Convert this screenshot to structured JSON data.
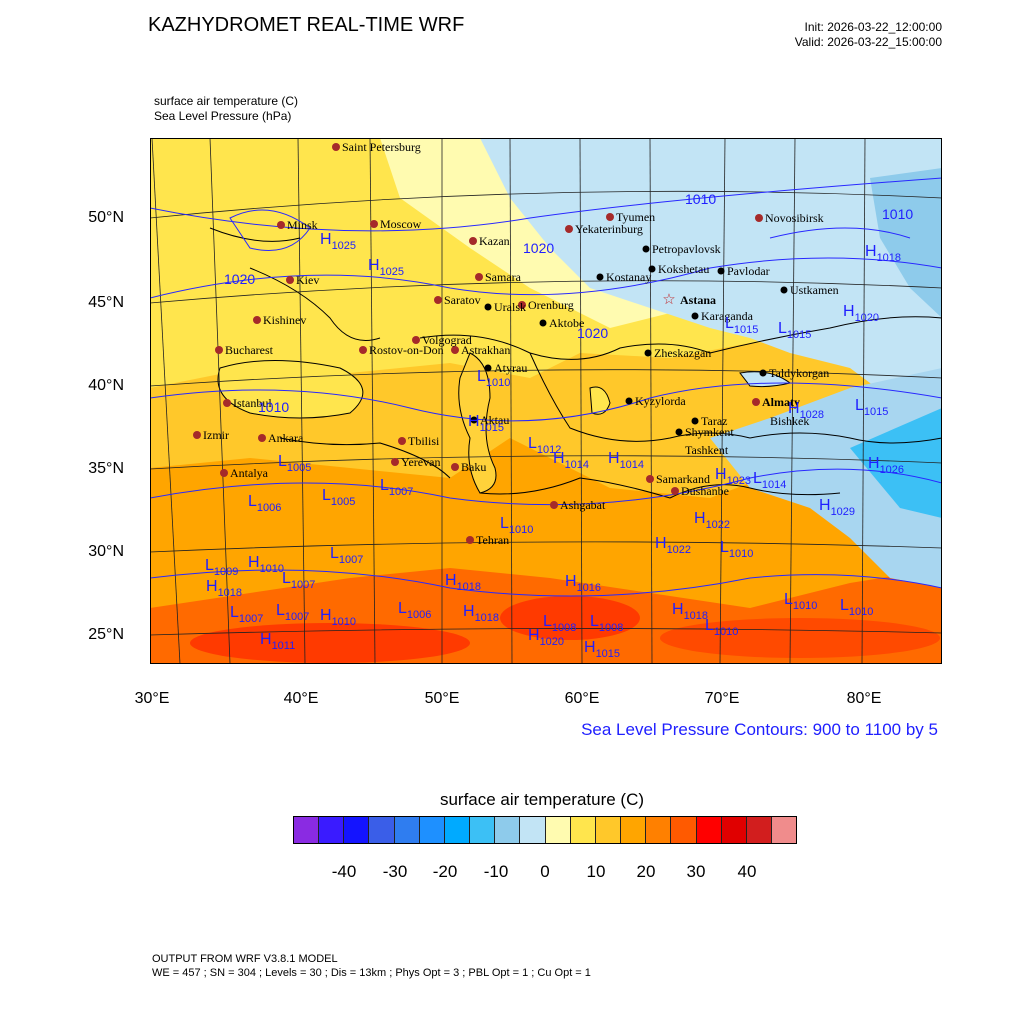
{
  "header": {
    "title": "KAZHYDROMET REAL-TIME WRF",
    "init": "Init: 2026-03-22_12:00:00",
    "valid": "Valid: 2026-03-22_15:00:00"
  },
  "fields": {
    "line1": "surface air temperature   (C)",
    "line2": "Sea Level Pressure   (hPa)"
  },
  "axes": {
    "lat_labels": [
      "50°N",
      "45°N",
      "40°N",
      "35°N",
      "30°N",
      "25°N"
    ],
    "lon_labels": [
      "30°E",
      "40°E",
      "50°E",
      "60°E",
      "70°E",
      "80°E"
    ]
  },
  "slp_note": "Sea Level Pressure Contours: 900 to 1100 by 5",
  "colorbar": {
    "title": "surface air temperature  (C)",
    "labels": [
      "-40",
      "-30",
      "-20",
      "-10",
      "0",
      "10",
      "20",
      "30",
      "40"
    ],
    "colors": [
      "#8a2be2",
      "#3a1bff",
      "#1414ff",
      "#3a5ee8",
      "#2f7df0",
      "#1e90ff",
      "#00aaff",
      "#3cc0f5",
      "#8ecbeb",
      "#c2e4f5",
      "#fffbb0",
      "#ffe54d",
      "#ffc82a",
      "#ffa500",
      "#ff8000",
      "#ff5a00",
      "#ff0000",
      "#e00000",
      "#d21e1e",
      "#f08c8c"
    ]
  },
  "cities": {
    "saint_petersburg": "Saint Petersburg",
    "minsk": "Minsk",
    "moscow": "Moscow",
    "kazan": "Kazan",
    "yekaterinburg": "Yekaterinburg",
    "tyumen": "Tyumen",
    "novosibirsk": "Novosibirsk",
    "petropavlovsk": "Petropavlovsk",
    "kokshetau": "Kokshetau",
    "pavlodar": "Pavlodar",
    "kostanay": "Kostanay",
    "astana": "Astana",
    "ustkamen": "Ustkamen",
    "karaganda": "Karaganda",
    "kiev": "Kiev",
    "samara": "Samara",
    "saratov": "Saratov",
    "orenburg": "Orenburg",
    "uralsk": "Uralsk",
    "aktobe": "Aktobe",
    "kishinev": "Kishinev",
    "volgograd": "Volgograd",
    "bucharest": "Bucharest",
    "rostov": "Rostov-on-Don",
    "astrakhan": "Astrakhan",
    "zheskazgan": "Zheskazgan",
    "atyrau": "Atyrau",
    "taldykorgan": "Taldykorgan",
    "istanbul": "Istanbul",
    "almaty": "Almaty",
    "kyzylorda": "Kyzylorda",
    "aktau": "Aktau",
    "taraz": "Taraz",
    "bishkek": "Bishkek",
    "izmir": "Izmir",
    "ankara": "Ankara",
    "tbilisi": "Tbilisi",
    "shymkent": "Shymkent",
    "tashkent": "Tashkent",
    "yerevan": "Yerevan",
    "baku": "Baku",
    "antalya": "Antalya",
    "samarkand": "Samarkand",
    "dushanbe": "Dushanbe",
    "ashgabat": "Ashgabat",
    "tehran": "Tehran"
  },
  "pressure_labels": [
    {
      "letter": "H",
      "value": "1025"
    },
    {
      "letter": "H",
      "value": "1025"
    },
    {
      "letter": "",
      "value": "1020"
    },
    {
      "letter": "",
      "value": "1020"
    },
    {
      "letter": "",
      "value": "1010"
    },
    {
      "letter": "",
      "value": "1010"
    },
    {
      "letter": "H",
      "value": "1018"
    },
    {
      "letter": "L",
      "value": "1015"
    },
    {
      "letter": "L",
      "value": "1015"
    },
    {
      "letter": "H",
      "value": "1020"
    },
    {
      "letter": "",
      "value": "1020"
    },
    {
      "letter": "L",
      "value": "1010"
    },
    {
      "letter": "",
      "value": "1010"
    },
    {
      "letter": "H",
      "value": "1015"
    },
    {
      "letter": "L",
      "value": "1005"
    },
    {
      "letter": "L",
      "value": "1006"
    },
    {
      "letter": "L",
      "value": "1005"
    },
    {
      "letter": "L",
      "value": "1007"
    },
    {
      "letter": "H",
      "value": "1014"
    },
    {
      "letter": "H",
      "value": "1014"
    },
    {
      "letter": "L",
      "value": "1012"
    },
    {
      "letter": "H",
      "value": "1028"
    },
    {
      "letter": "L",
      "value": "1015"
    },
    {
      "letter": "H",
      "value": "1026"
    },
    {
      "letter": "L",
      "value": "1014"
    },
    {
      "letter": "H",
      "value": "1029"
    },
    {
      "letter": "H",
      "value": "1022"
    },
    {
      "letter": "H",
      "value": "1022"
    },
    {
      "letter": "L",
      "value": "1010"
    },
    {
      "letter": "L",
      "value": "1007"
    },
    {
      "letter": "L",
      "value": "1009"
    },
    {
      "letter": "H",
      "value": "1010"
    },
    {
      "letter": "L",
      "value": "1007"
    },
    {
      "letter": "H",
      "value": "1018"
    },
    {
      "letter": "H",
      "value": "1016"
    },
    {
      "letter": "L",
      "value": "1007"
    },
    {
      "letter": "L",
      "value": "1007"
    },
    {
      "letter": "H",
      "value": "1010"
    },
    {
      "letter": "L",
      "value": "1006"
    },
    {
      "letter": "H",
      "value": "1018"
    },
    {
      "letter": "L",
      "value": "1008"
    },
    {
      "letter": "L",
      "value": "1008"
    },
    {
      "letter": "H",
      "value": "1020"
    },
    {
      "letter": "H",
      "value": "1015"
    },
    {
      "letter": "H",
      "value": "1018"
    },
    {
      "letter": "L",
      "value": "1010"
    },
    {
      "letter": "L",
      "value": "1010"
    },
    {
      "letter": "L",
      "value": "1010"
    },
    {
      "letter": "H",
      "value": "1011"
    },
    {
      "letter": "L",
      "value": "1010"
    },
    {
      "letter": "H",
      "value": "1023"
    },
    {
      "letter": "H",
      "value": "1018"
    }
  ],
  "footer": {
    "line1": "OUTPUT FROM WRF V3.8.1 MODEL",
    "line2": "WE = 457 ; SN = 304 ; Levels = 30 ; Dis = 13km ; Phys Opt = 3 ; PBL Opt = 1 ; Cu Opt = 1"
  }
}
